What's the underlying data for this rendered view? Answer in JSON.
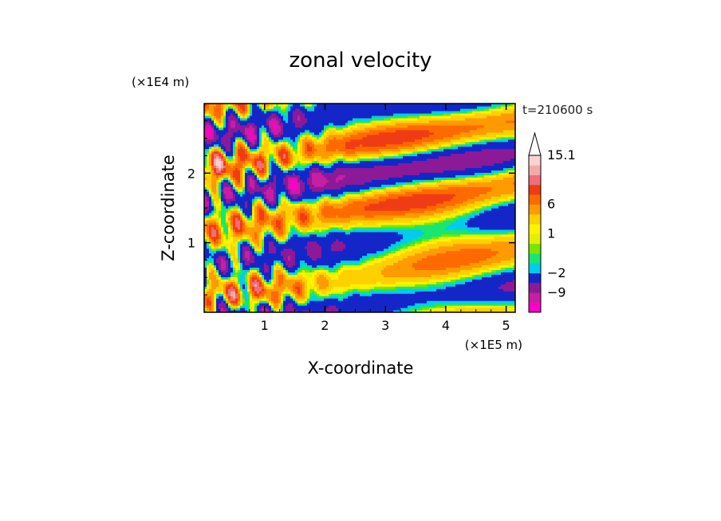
{
  "chart_data": {
    "type": "heatmap",
    "title": "zonal velocity",
    "xlabel": "X-coordinate",
    "ylabel": "Z-coordinate",
    "x_unit": "(×1E5 m)",
    "y_unit": "(×1E4 m)",
    "time_label": "t=210600 s",
    "xlim": [
      0,
      5.15
    ],
    "ylim": [
      0,
      3.0
    ],
    "x_ticks": [
      "1",
      "2",
      "3",
      "4",
      "5"
    ],
    "x_tick_values": [
      1,
      2,
      3,
      4,
      5
    ],
    "y_ticks": [
      "1",
      "2"
    ],
    "y_tick_values": [
      1,
      2
    ],
    "colorbar": {
      "labels": [
        "15.1",
        "6",
        "1",
        "−2",
        "−9"
      ],
      "label_values": [
        15.1,
        6,
        1,
        -2,
        -9
      ],
      "extend": "max",
      "levels": [
        -16,
        -12,
        -9,
        -6,
        -2,
        -1,
        0,
        0.5,
        1,
        2,
        4,
        6,
        8,
        10.5,
        13,
        15.1
      ],
      "colors": [
        "#ff00c8",
        "#c71ea5",
        "#8c1a96",
        "#1426c8",
        "#00ccee",
        "#19e66e",
        "#7ae600",
        "#e3f000",
        "#fff200",
        "#ffd000",
        "#ff9a00",
        "#ff6a00",
        "#f03c14",
        "#f06e78",
        "#f5aaaa",
        "#fad2d2"
      ]
    }
  }
}
